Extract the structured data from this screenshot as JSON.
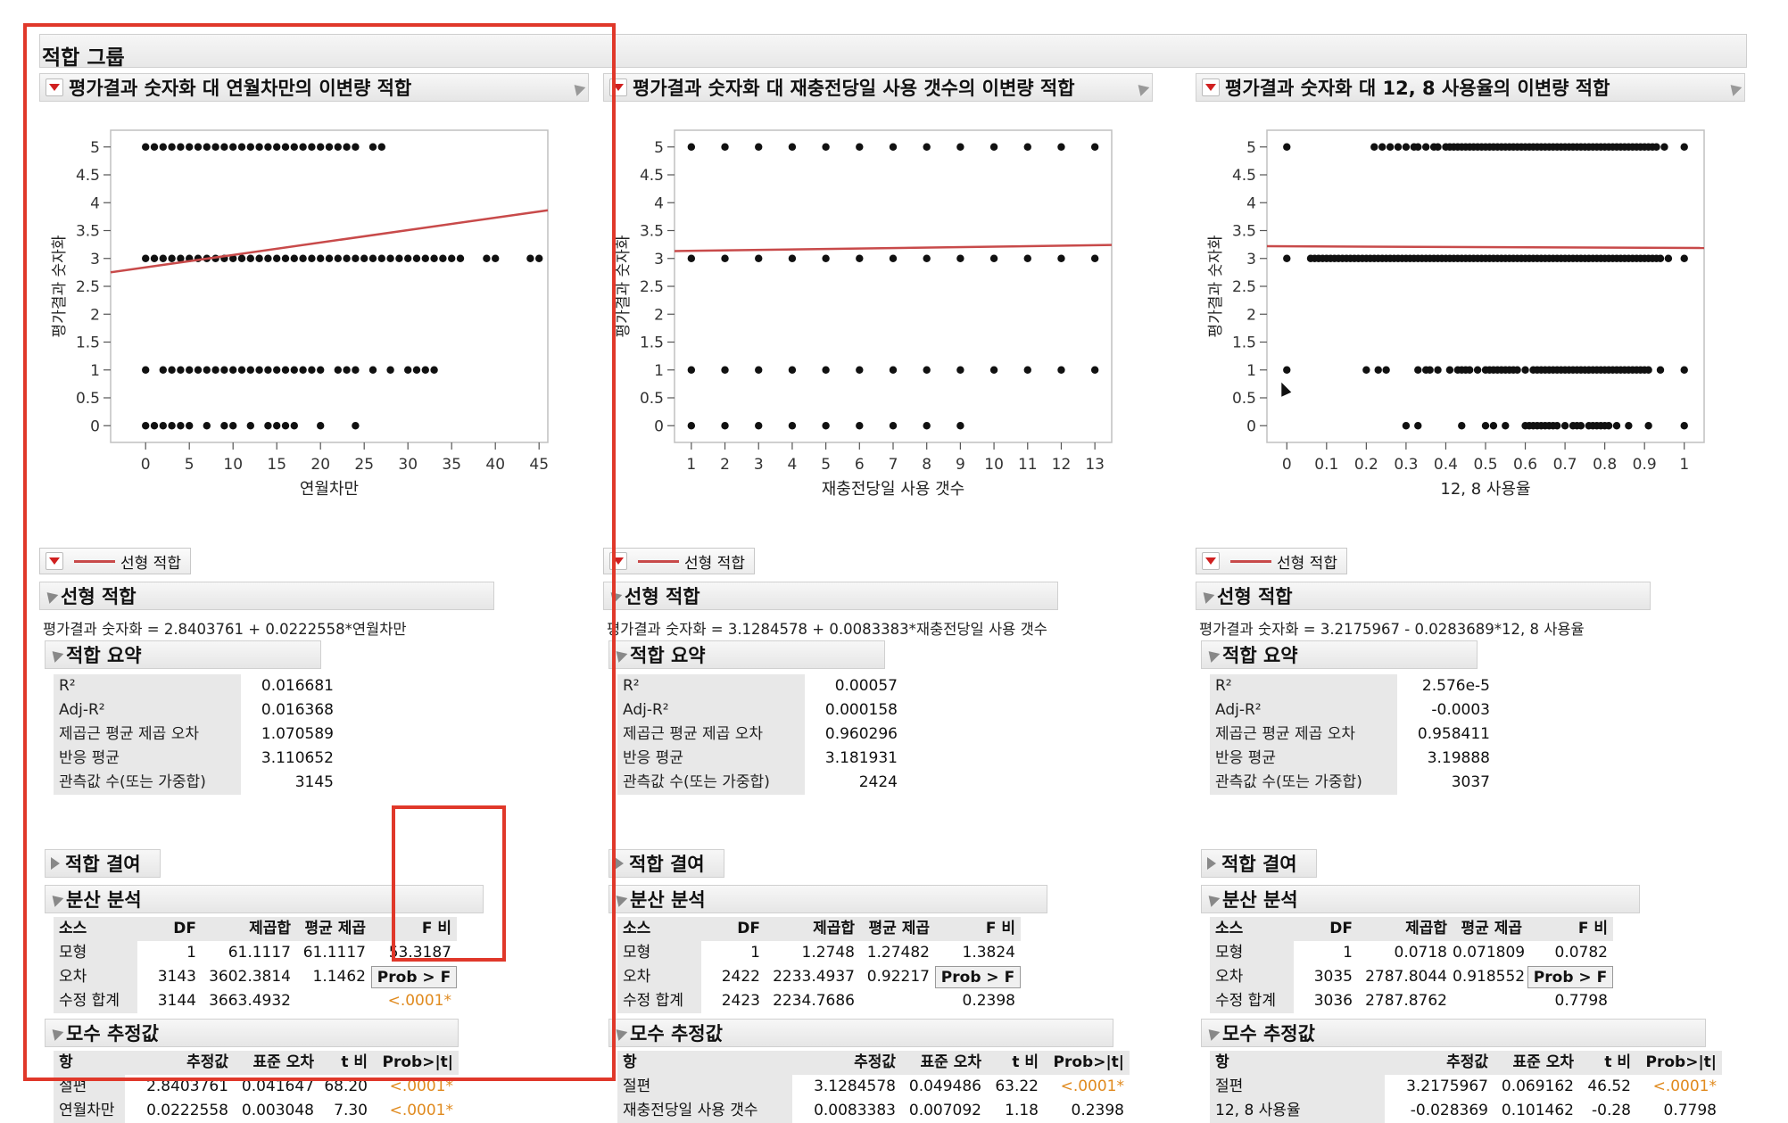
{
  "group_title": "적합 그룹",
  "reports": [
    {
      "title": "평가결과 숫자화 대 연월차만의 이변량 적합",
      "chart_data": {
        "type": "scatter",
        "xlabel": "연월차만",
        "ylabel": "평가결과 숫자화",
        "xlim": [
          -4,
          46
        ],
        "ylim": [
          -0.3,
          5.3
        ],
        "xticks": [
          "0",
          "5",
          "10",
          "15",
          "20",
          "25",
          "30",
          "35",
          "40",
          "45"
        ],
        "xtick_values": [
          0,
          5,
          10,
          15,
          20,
          25,
          30,
          35,
          40,
          45
        ],
        "yticks": [
          "0",
          "0.5",
          "1",
          "1.5",
          "2",
          "2.5",
          "3",
          "3.5",
          "4",
          "4.5",
          "5"
        ],
        "ytick_values": [
          0,
          0.5,
          1,
          1.5,
          2,
          2.5,
          3,
          3.5,
          4,
          4.5,
          5
        ],
        "points": {
          "5": [
            0,
            1,
            2,
            3,
            4,
            5,
            6,
            7,
            8,
            9,
            10,
            11,
            12,
            13,
            14,
            15,
            16,
            17,
            18,
            19,
            20,
            21,
            22,
            23,
            24,
            26,
            27
          ],
          "3": [
            0,
            1,
            2,
            3,
            4,
            5,
            6,
            7,
            8,
            9,
            10,
            11,
            12,
            13,
            14,
            15,
            16,
            17,
            18,
            19,
            20,
            21,
            22,
            23,
            24,
            25,
            26,
            27,
            28,
            29,
            30,
            31,
            32,
            33,
            34,
            35,
            36,
            39,
            40,
            44,
            45
          ],
          "1": [
            0,
            2,
            3,
            4,
            5,
            6,
            7,
            8,
            9,
            10,
            11,
            12,
            13,
            14,
            15,
            16,
            17,
            18,
            19,
            20,
            22,
            23,
            24,
            26,
            28,
            30,
            31,
            32,
            33
          ],
          "0": [
            0,
            1,
            2,
            3,
            4,
            5,
            7,
            9,
            10,
            12,
            14,
            15,
            16,
            17,
            20,
            24
          ]
        },
        "fit": {
          "intercept": 2.8403761,
          "slope": 0.0222558,
          "color": "#c84a4a"
        }
      },
      "fit_button": "선형 적합",
      "linear_fit_title": "선형 적합",
      "equation": "평가결과 숫자화 = 2.8403761 + 0.0222558*연월차만",
      "summary_title": "적합 요약",
      "summary": [
        {
          "label": "R²",
          "value": "0.016681"
        },
        {
          "label": "Adj-R²",
          "value": "0.016368"
        },
        {
          "label": "제곱근 평균 제곱 오차",
          "value": "1.070589"
        },
        {
          "label": "반응 평균",
          "value": "3.110652"
        },
        {
          "label": "관측값 수(또는 가중합)",
          "value": "3145"
        }
      ],
      "lack_of_fit_title": "적합 결여",
      "anova_title": "분산 분석",
      "anova_headers": [
        "소스",
        "DF",
        "제곱합",
        "평균 제곱",
        "F 비"
      ],
      "anova_rows": [
        {
          "source": "모형",
          "df": "1",
          "ss": "61.1117",
          "ms": "61.1117",
          "f": "53.3187"
        },
        {
          "source": "오차",
          "df": "3143",
          "ss": "3602.3814",
          "ms": "1.1462",
          "f": "Prob > F"
        },
        {
          "source": "수정 합계",
          "df": "3144",
          "ss": "3663.4932",
          "ms": "",
          "f": "<.0001*"
        }
      ],
      "params_title": "모수 추정값",
      "param_headers": [
        "항",
        "추정값",
        "표준 오차",
        "t 비",
        "Prob>|t|"
      ],
      "param_rows": [
        {
          "term": "절편",
          "est": "2.8403761",
          "se": "0.041647",
          "t": "68.20",
          "p": "<.0001*"
        },
        {
          "term": "연월차만",
          "est": "0.0222558",
          "se": "0.003048",
          "t": "7.30",
          "p": "<.0001*"
        }
      ]
    },
    {
      "title": "평가결과 숫자화 대 재충전당일 사용 갯수의 이변량 적합",
      "chart_data": {
        "type": "scatter",
        "xlabel": "재충전당일 사용 갯수",
        "ylabel": "평가결과 숫자화",
        "xlim": [
          0.5,
          13.5
        ],
        "ylim": [
          -0.3,
          5.3
        ],
        "xticks": [
          "1",
          "2",
          "3",
          "4",
          "5",
          "6",
          "7",
          "8",
          "9",
          "10",
          "11",
          "12",
          "13"
        ],
        "xtick_values": [
          1,
          2,
          3,
          4,
          5,
          6,
          7,
          8,
          9,
          10,
          11,
          12,
          13
        ],
        "yticks": [
          "0",
          "0.5",
          "1",
          "1.5",
          "2",
          "2.5",
          "3",
          "3.5",
          "4",
          "4.5",
          "5"
        ],
        "ytick_values": [
          0,
          0.5,
          1,
          1.5,
          2,
          2.5,
          3,
          3.5,
          4,
          4.5,
          5
        ],
        "points": {
          "5": [
            1,
            2,
            3,
            4,
            5,
            6,
            7,
            8,
            9,
            10,
            11,
            12,
            13
          ],
          "3": [
            1,
            2,
            3,
            4,
            5,
            6,
            7,
            8,
            9,
            10,
            11,
            12,
            13
          ],
          "1": [
            1,
            2,
            3,
            4,
            5,
            6,
            7,
            8,
            9,
            10,
            11,
            12,
            13
          ],
          "0": [
            1,
            2,
            3,
            4,
            5,
            6,
            7,
            8,
            9
          ]
        },
        "fit": {
          "intercept": 3.1284578,
          "slope": 0.0083383,
          "color": "#c84a4a"
        }
      },
      "fit_button": "선형 적합",
      "linear_fit_title": "선형 적합",
      "equation": "평가결과 숫자화 = 3.1284578 + 0.0083383*재충전당일 사용 갯수",
      "summary_title": "적합 요약",
      "summary": [
        {
          "label": "R²",
          "value": "0.00057"
        },
        {
          "label": "Adj-R²",
          "value": "0.000158"
        },
        {
          "label": "제곱근 평균 제곱 오차",
          "value": "0.960296"
        },
        {
          "label": "반응 평균",
          "value": "3.181931"
        },
        {
          "label": "관측값 수(또는 가중합)",
          "value": "2424"
        }
      ],
      "lack_of_fit_title": "적합 결여",
      "anova_title": "분산 분석",
      "anova_headers": [
        "소스",
        "DF",
        "제곱합",
        "평균 제곱",
        "F 비"
      ],
      "anova_rows": [
        {
          "source": "모형",
          "df": "1",
          "ss": "1.2748",
          "ms": "1.27482",
          "f": "1.3824"
        },
        {
          "source": "오차",
          "df": "2422",
          "ss": "2233.4937",
          "ms": "0.92217",
          "f": "Prob > F"
        },
        {
          "source": "수정 합계",
          "df": "2423",
          "ss": "2234.7686",
          "ms": "",
          "f": "0.2398"
        }
      ],
      "params_title": "모수 추정값",
      "param_headers": [
        "항",
        "추정값",
        "표준 오차",
        "t 비",
        "Prob>|t|"
      ],
      "param_rows": [
        {
          "term": "절편",
          "est": "3.1284578",
          "se": "0.049486",
          "t": "63.22",
          "p": "<.0001*"
        },
        {
          "term": "재충전당일 사용 갯수",
          "est": "0.0083383",
          "se": "0.007092",
          "t": "1.18",
          "p": "0.2398"
        }
      ]
    },
    {
      "title": "평가결과 숫자화 대 12, 8 사용율의 이변량 적합",
      "chart_data": {
        "type": "scatter",
        "xlabel": "12, 8 사용율",
        "ylabel": "평가결과 숫자화",
        "xlim": [
          -0.05,
          1.05
        ],
        "ylim": [
          -0.3,
          5.3
        ],
        "xticks": [
          "0",
          "0.1",
          "0.2",
          "0.3",
          "0.4",
          "0.5",
          "0.6",
          "0.7",
          "0.8",
          "0.9",
          "1"
        ],
        "xtick_values": [
          0,
          0.1,
          0.2,
          0.3,
          0.4,
          0.5,
          0.6,
          0.7,
          0.8,
          0.9,
          1
        ],
        "yticks": [
          "0",
          "0.5",
          "1",
          "1.5",
          "2",
          "2.5",
          "3",
          "3.5",
          "4",
          "4.5",
          "5"
        ],
        "ytick_values": [
          0,
          0.5,
          1,
          1.5,
          2,
          2.5,
          3,
          3.5,
          4,
          4.5,
          5
        ],
        "points": {
          "5": [
            0,
            0.22,
            0.24,
            0.26,
            0.28,
            0.3,
            0.32,
            0.33,
            0.35,
            0.37,
            0.38,
            0.4,
            0.41,
            0.42,
            0.43,
            0.44,
            0.45,
            0.46,
            0.47,
            0.48,
            0.49,
            0.5,
            0.51,
            0.52,
            0.53,
            0.54,
            0.55,
            0.56,
            0.57,
            0.58,
            0.59,
            0.6,
            0.61,
            0.62,
            0.63,
            0.64,
            0.65,
            0.66,
            0.67,
            0.68,
            0.69,
            0.7,
            0.71,
            0.72,
            0.73,
            0.74,
            0.75,
            0.76,
            0.77,
            0.78,
            0.79,
            0.8,
            0.81,
            0.82,
            0.83,
            0.84,
            0.85,
            0.86,
            0.87,
            0.88,
            0.89,
            0.9,
            0.91,
            0.92,
            0.93,
            0.95,
            1
          ],
          "3": [
            0,
            0.06,
            0.07,
            0.08,
            0.09,
            0.1,
            0.11,
            0.12,
            0.13,
            0.14,
            0.15,
            0.16,
            0.17,
            0.18,
            0.19,
            0.2,
            0.21,
            0.22,
            0.23,
            0.24,
            0.25,
            0.26,
            0.27,
            0.28,
            0.29,
            0.3,
            0.31,
            0.32,
            0.33,
            0.34,
            0.35,
            0.36,
            0.37,
            0.38,
            0.39,
            0.4,
            0.41,
            0.42,
            0.43,
            0.44,
            0.45,
            0.46,
            0.47,
            0.48,
            0.49,
            0.5,
            0.51,
            0.52,
            0.53,
            0.54,
            0.55,
            0.56,
            0.57,
            0.58,
            0.59,
            0.6,
            0.61,
            0.62,
            0.63,
            0.64,
            0.65,
            0.66,
            0.67,
            0.68,
            0.69,
            0.7,
            0.71,
            0.72,
            0.73,
            0.74,
            0.75,
            0.76,
            0.77,
            0.78,
            0.79,
            0.8,
            0.81,
            0.82,
            0.83,
            0.84,
            0.85,
            0.86,
            0.87,
            0.88,
            0.89,
            0.9,
            0.91,
            0.92,
            0.93,
            0.94,
            0.96,
            1
          ],
          "1": [
            0,
            0.2,
            0.23,
            0.25,
            0.33,
            0.35,
            0.36,
            0.38,
            0.41,
            0.43,
            0.44,
            0.45,
            0.46,
            0.48,
            0.5,
            0.51,
            0.52,
            0.53,
            0.54,
            0.55,
            0.56,
            0.57,
            0.58,
            0.6,
            0.62,
            0.63,
            0.64,
            0.65,
            0.66,
            0.67,
            0.68,
            0.69,
            0.7,
            0.71,
            0.72,
            0.73,
            0.74,
            0.75,
            0.76,
            0.77,
            0.78,
            0.79,
            0.8,
            0.81,
            0.82,
            0.83,
            0.84,
            0.85,
            0.86,
            0.87,
            0.88,
            0.89,
            0.9,
            0.91,
            0.94,
            1
          ],
          "0": [
            0.3,
            0.33,
            0.44,
            0.5,
            0.52,
            0.55,
            0.6,
            0.61,
            0.62,
            0.63,
            0.64,
            0.65,
            0.66,
            0.67,
            0.68,
            0.7,
            0.72,
            0.73,
            0.74,
            0.76,
            0.77,
            0.78,
            0.79,
            0.8,
            0.81,
            0.83,
            0.86,
            0.91,
            1
          ]
        },
        "fit": {
          "intercept": 3.2175967,
          "slope": -0.0283689,
          "color": "#c84a4a"
        }
      },
      "fit_button": "선형 적합",
      "linear_fit_title": "선형 적합",
      "equation": "평가결과 숫자화 = 3.2175967 - 0.0283689*12, 8 사용율",
      "summary_title": "적합 요약",
      "summary": [
        {
          "label": "R²",
          "value": "2.576e-5"
        },
        {
          "label": "Adj-R²",
          "value": "-0.0003"
        },
        {
          "label": "제곱근 평균 제곱 오차",
          "value": "0.958411"
        },
        {
          "label": "반응 평균",
          "value": "3.19888"
        },
        {
          "label": "관측값 수(또는 가중합)",
          "value": "3037"
        }
      ],
      "lack_of_fit_title": "적합 결여",
      "anova_title": "분산 분석",
      "anova_headers": [
        "소스",
        "DF",
        "제곱합",
        "평균 제곱",
        "F 비"
      ],
      "anova_rows": [
        {
          "source": "모형",
          "df": "1",
          "ss": "0.0718",
          "ms": "0.071809",
          "f": "0.0782"
        },
        {
          "source": "오차",
          "df": "3035",
          "ss": "2787.8044",
          "ms": "0.918552",
          "f": "Prob > F"
        },
        {
          "source": "수정 합계",
          "df": "3036",
          "ss": "2787.8762",
          "ms": "",
          "f": "0.7798"
        }
      ],
      "params_title": "모수 추정값",
      "param_headers": [
        "항",
        "추정값",
        "표준 오차",
        "t 비",
        "Prob>|t|"
      ],
      "param_rows": [
        {
          "term": "절편",
          "est": "3.2175967",
          "se": "0.069162",
          "t": "46.52",
          "p": "<.0001*"
        },
        {
          "term": "12, 8 사용율",
          "est": "-0.028369",
          "se": "0.101462",
          "t": "-0.28",
          "p": "0.7798"
        }
      ]
    }
  ],
  "colors": {
    "fit_line": "#c84a4a",
    "highlight": "#e0382a",
    "significant": "#e08a1e"
  }
}
